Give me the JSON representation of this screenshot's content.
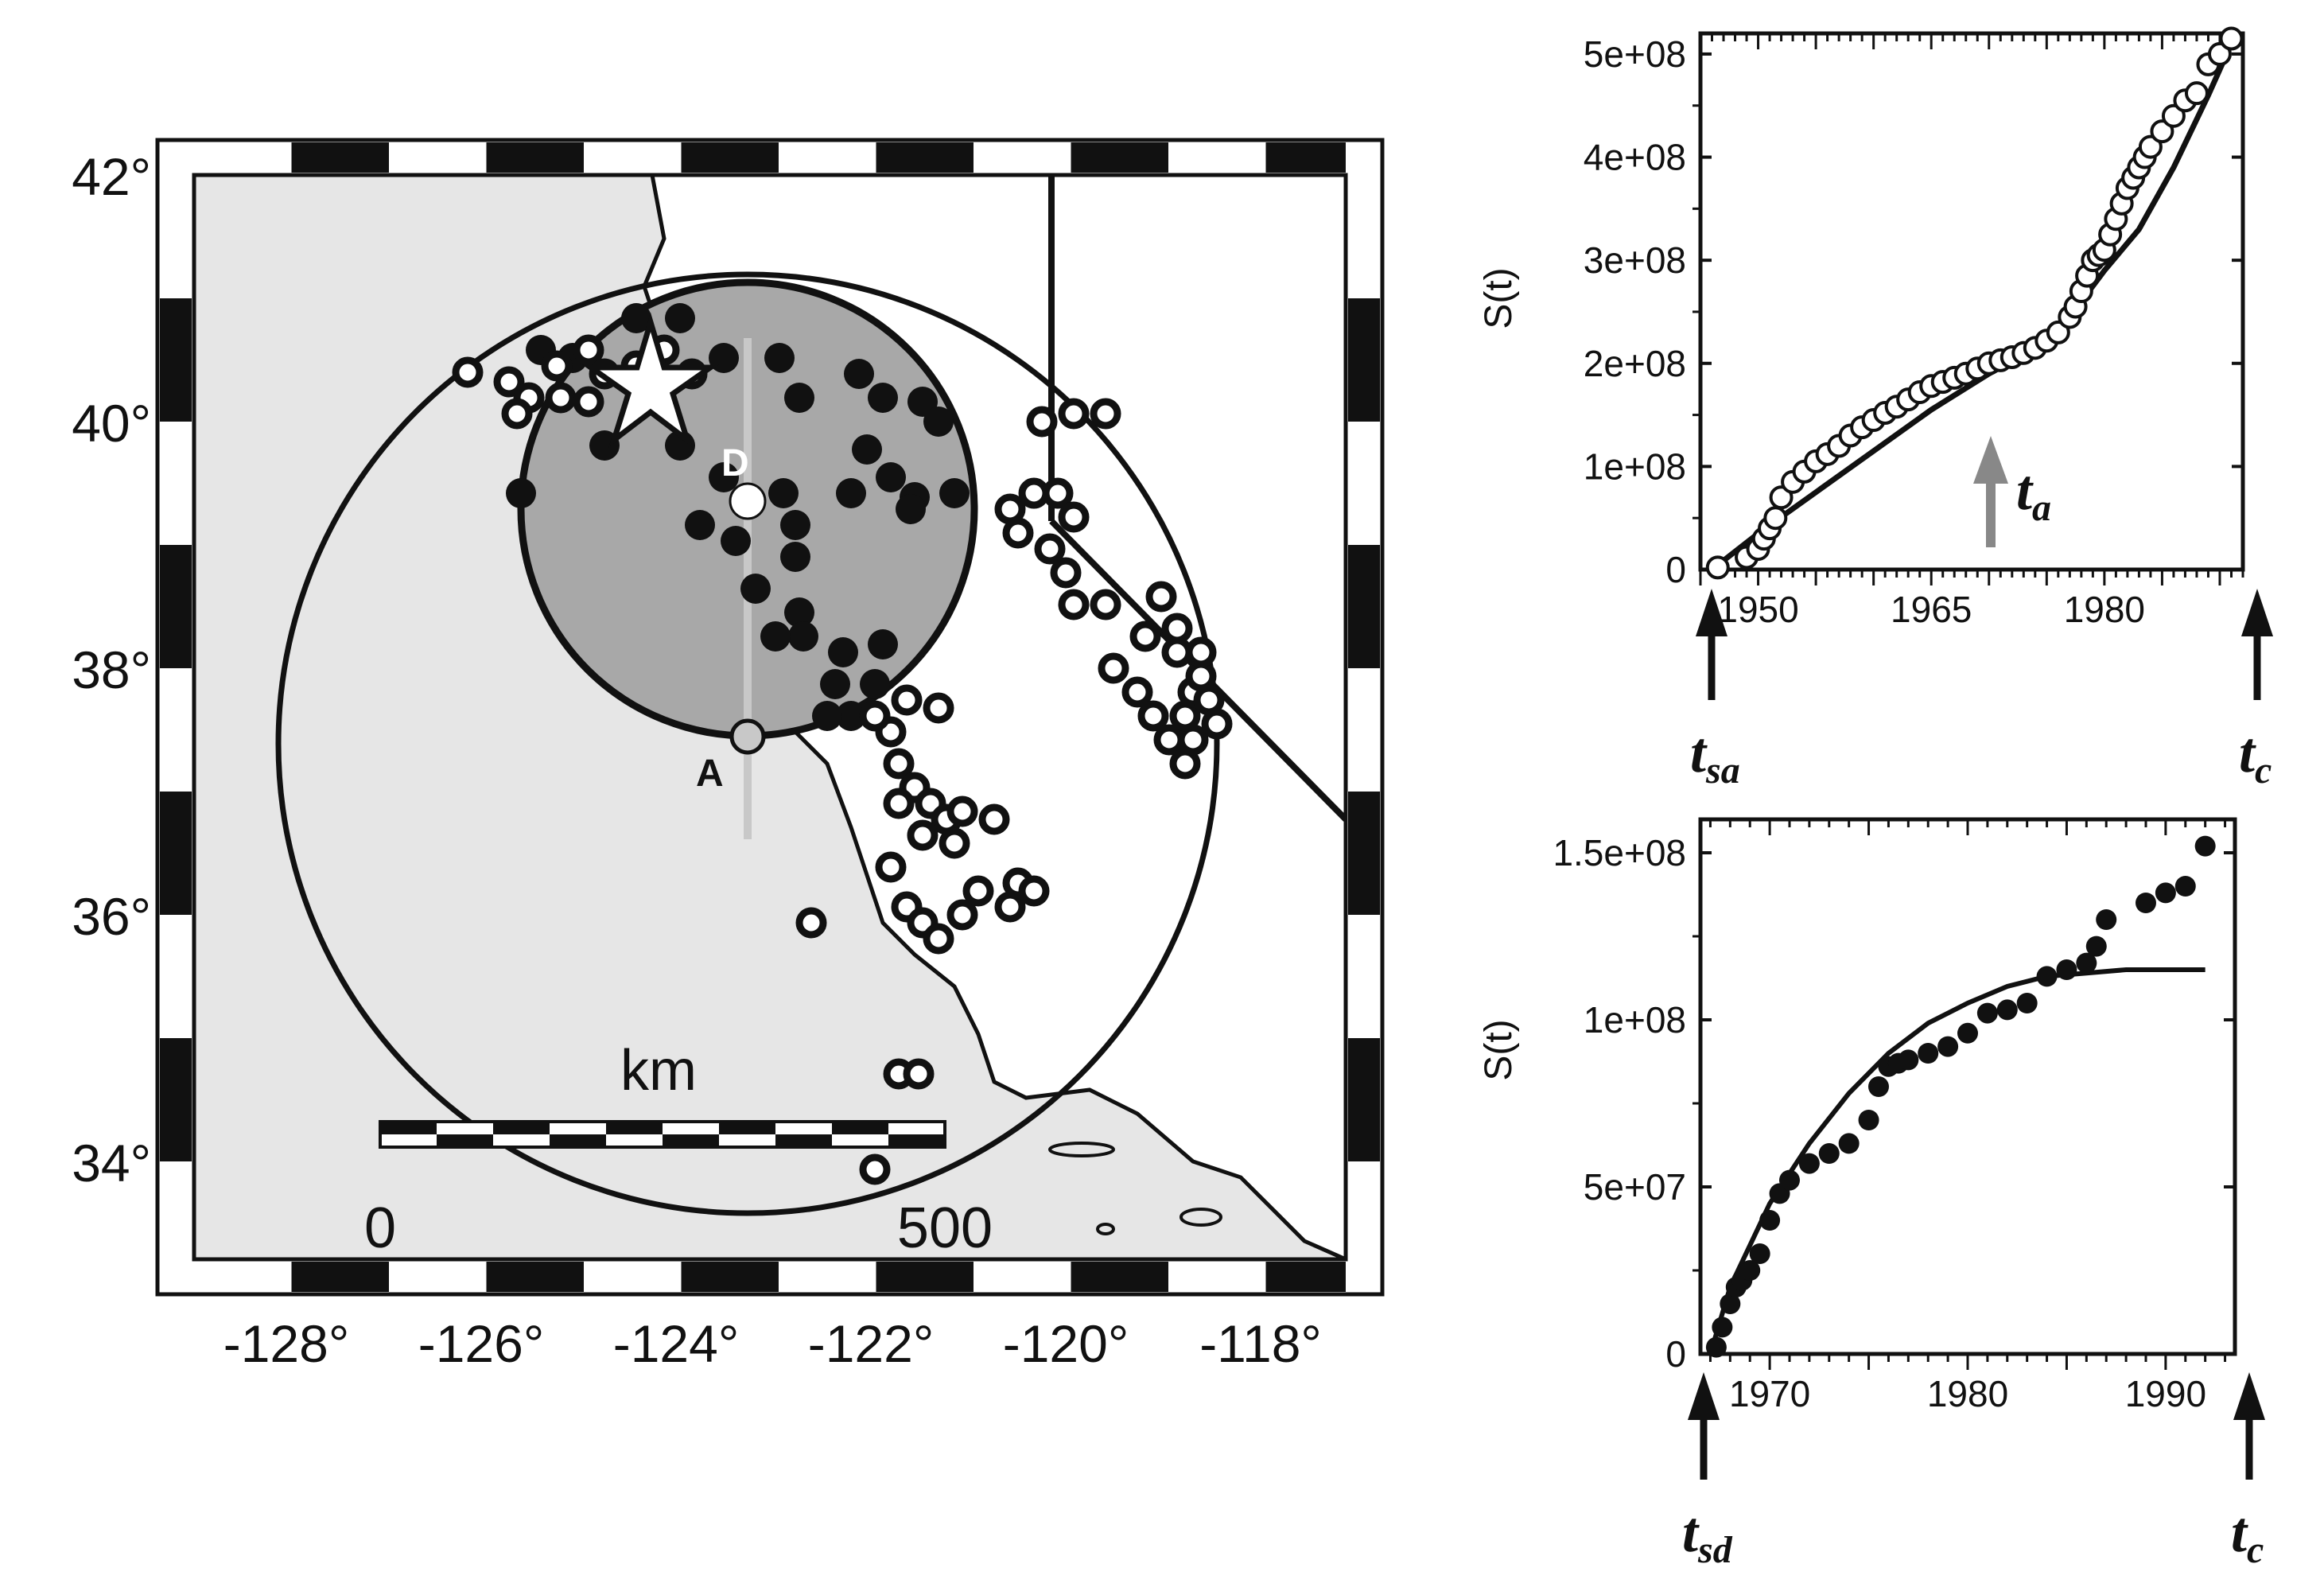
{
  "map": {
    "lat_labels": [
      "42°",
      "40°",
      "38°",
      "36°",
      "34°"
    ],
    "lon_labels": [
      "-128°",
      "-126°",
      "-124°",
      "-122°",
      "-120°",
      "-118°"
    ],
    "scale_label": "km",
    "scale_ticks": [
      "0",
      "500"
    ],
    "epicenter_label": "E",
    "point_d_label": "D",
    "point_a_label": "A",
    "colors": {
      "ocean": "#e6e6e6",
      "land": "#ffffff",
      "disk": "#a8a8a8",
      "ink": "#111111",
      "line": "#c8c8c8"
    }
  },
  "chart_data": [
    {
      "type": "scatter",
      "id": "top",
      "marker": "open-circle",
      "ylabel": "S(t)",
      "xticks": [
        "1950",
        "1965",
        "1980"
      ],
      "yticks": [
        "0",
        "1e+08",
        "2e+08",
        "3e+08",
        "4e+08",
        "5e+08"
      ],
      "arrow_labels": {
        "left": "t",
        "left_sub": "sa",
        "right": "t",
        "right_sub": "c",
        "mid": "t",
        "mid_sub": "a"
      },
      "xlim": [
        1945,
        1992
      ],
      "ylim": [
        0,
        520000000.0
      ],
      "x": [
        1946.5,
        1949,
        1950,
        1950.5,
        1951,
        1951.5,
        1952,
        1953,
        1954,
        1955,
        1956,
        1957,
        1958,
        1959,
        1960,
        1961,
        1962,
        1963,
        1964,
        1965,
        1966,
        1967,
        1968,
        1969,
        1970,
        1971,
        1972,
        1973,
        1974,
        1975,
        1976,
        1977,
        1977.5,
        1978,
        1978.5,
        1979,
        1979.5,
        1980,
        1980.5,
        1981,
        1981.5,
        1982,
        1982.5,
        1983,
        1983.5,
        1984,
        1985,
        1986,
        1987,
        1988,
        1989,
        1990,
        1991
      ],
      "y": [
        2000000.0,
        12000000.0,
        20000000.0,
        30000000.0,
        40000000.0,
        50000000.0,
        70000000.0,
        85000000.0,
        95000000.0,
        105000000.0,
        112000000.0,
        120000000.0,
        130000000.0,
        138000000.0,
        145000000.0,
        152000000.0,
        158000000.0,
        165000000.0,
        172000000.0,
        178000000.0,
        182000000.0,
        186000000.0,
        190000000.0,
        195000000.0,
        200000000.0,
        203000000.0,
        206000000.0,
        210000000.0,
        215000000.0,
        222000000.0,
        230000000.0,
        245000000.0,
        255000000.0,
        270000000.0,
        285000000.0,
        300000000.0,
        305000000.0,
        310000000.0,
        325000000.0,
        340000000.0,
        355000000.0,
        370000000.0,
        380000000.0,
        390000000.0,
        400000000.0,
        410000000.0,
        425000000.0,
        440000000.0,
        455000000.0,
        462000000.0,
        490000000.0,
        500000000.0,
        515000000.0
      ],
      "fit_x": [
        1946,
        1950,
        1955,
        1960,
        1965,
        1970,
        1975,
        1978,
        1980,
        1983,
        1986,
        1989,
        1991
      ],
      "fit_y": [
        0.0,
        35000000.0,
        75000000.0,
        115000000.0,
        155000000.0,
        190000000.0,
        220000000.0,
        260000000.0,
        290000000.0,
        330000000.0,
        390000000.0,
        460000000.0,
        510000000.0
      ]
    },
    {
      "type": "scatter",
      "id": "bottom",
      "marker": "filled-circle",
      "ylabel": "S(t)",
      "xticks": [
        "1970",
        "1980",
        "1990"
      ],
      "yticks": [
        "0",
        "5e+07",
        "1e+08",
        "1.5e+08"
      ],
      "arrow_labels": {
        "left": "t",
        "left_sub": "sd",
        "right": "t",
        "right_sub": "c"
      },
      "xlim": [
        1966.5,
        1993.5
      ],
      "ylim": [
        0,
        160000000.0
      ],
      "x": [
        1967.3,
        1967.6,
        1968,
        1968.3,
        1968.6,
        1969,
        1969.5,
        1970,
        1970.5,
        1971,
        1972,
        1973,
        1974,
        1975,
        1975.5,
        1976,
        1976.5,
        1977,
        1978,
        1979,
        1980,
        1981,
        1982,
        1983,
        1984,
        1985,
        1986,
        1986.5,
        1987,
        1989,
        1990,
        1991,
        1992
      ],
      "y": [
        2000000.0,
        8000000.0,
        15000000.0,
        20000000.0,
        22000000.0,
        25000000.0,
        30000000.0,
        40000000.0,
        48000000.0,
        52000000.0,
        57000000.0,
        60000000.0,
        63000000.0,
        70000000.0,
        80000000.0,
        86000000.0,
        87000000.0,
        88000000.0,
        90000000.0,
        92000000.0,
        96000000.0,
        102000000.0,
        103000000.0,
        105000000.0,
        113000000.0,
        115000000.0,
        117000000.0,
        122000000.0,
        130000000.0,
        135000000.0,
        138000000.0,
        140000000.0,
        152000000.0
      ],
      "fit_x": [
        1967,
        1968,
        1970,
        1972,
        1974,
        1976,
        1978,
        1980,
        1982,
        1984,
        1986,
        1988,
        1990,
        1992
      ],
      "fit_y": [
        0.0,
        20000000.0,
        45000000.0,
        63000000.0,
        78000000.0,
        90000000.0,
        99000000.0,
        105000000.0,
        110000000.0,
        113000000.0,
        114000000.0,
        115000000.0,
        115000000.0,
        115000000.0
      ]
    }
  ]
}
